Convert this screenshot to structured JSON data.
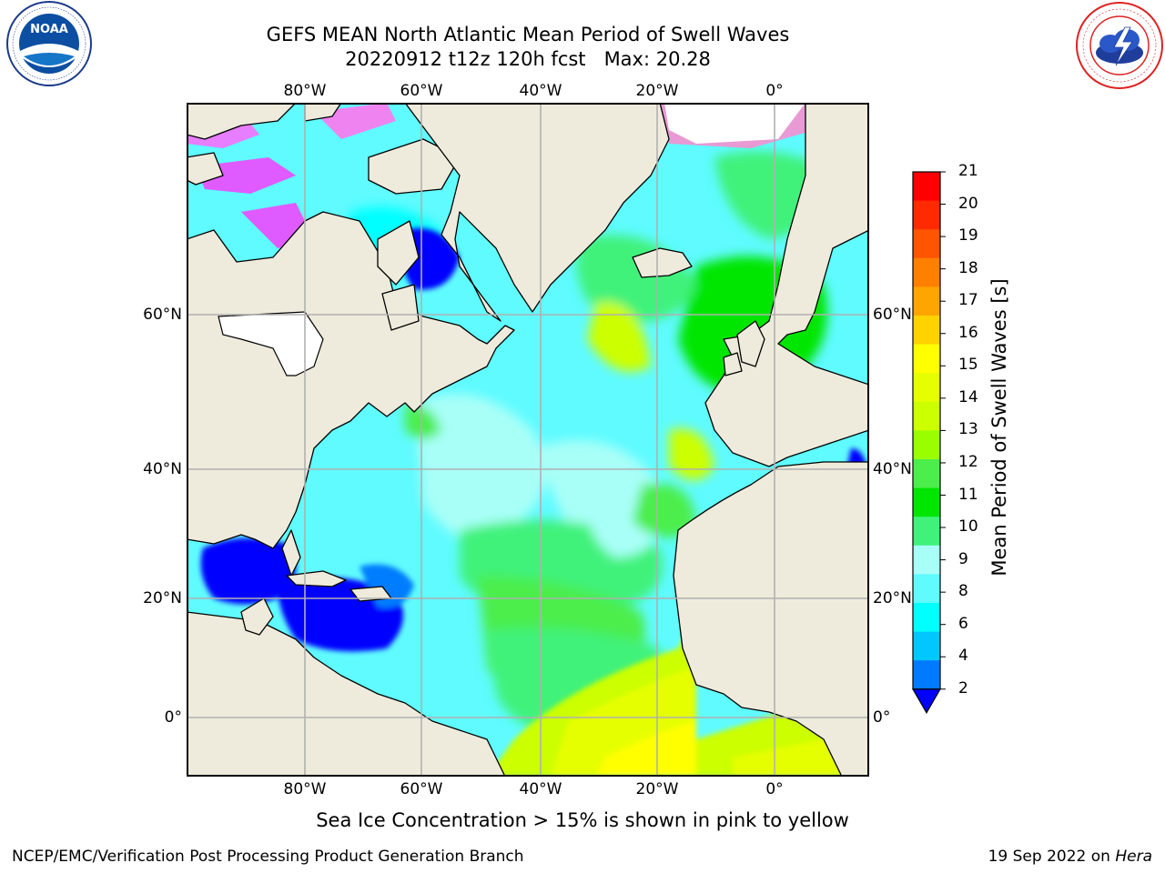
{
  "title": {
    "line1": "GEFS MEAN North Atlantic Mean Period of Swell Waves",
    "line2": "20220912 t12z 120h fcst   Max: 20.28"
  },
  "map": {
    "lon_labels": [
      "80°W",
      "60°W",
      "40°W",
      "20°W",
      "0°"
    ],
    "lat_labels": [
      "60°N",
      "40°N",
      "20°N",
      "0°"
    ],
    "extent": {
      "lon": [
        -100,
        15
      ],
      "lat": [
        -8,
        78
      ]
    },
    "land_color": "#efebdc",
    "ice_mask_color": "#ffffff"
  },
  "colorbar": {
    "label": "Mean Period of Swell Waves [s]",
    "ticks": [
      "21",
      "20",
      "19",
      "18",
      "17",
      "16",
      "15",
      "14",
      "13",
      "12",
      "11",
      "10",
      "9",
      "8",
      "6",
      "4",
      "2"
    ],
    "colors_top_to_bottom": [
      "#ff0000",
      "#ff2a00",
      "#ff5500",
      "#ff7f00",
      "#ffa500",
      "#ffd200",
      "#ffff00",
      "#e6ff00",
      "#ccff00",
      "#99ff00",
      "#4cee4c",
      "#00e600",
      "#40f27a",
      "#a8fff8",
      "#5ffbff",
      "#00ffff",
      "#00c8ff",
      "#007bff"
    ],
    "extend_color": "#0000ff"
  },
  "caption": "Sea Ice Concentration > 15% is shown in pink to yellow",
  "footer": {
    "credit": "NCEP/EMC/Verification Post Processing Product Generation Branch",
    "date": "19 Sep 2022 on",
    "machine": "Hera"
  },
  "logos": {
    "noaa": "NOAA",
    "nws": "NATIONAL WEATHER SERVICE"
  }
}
